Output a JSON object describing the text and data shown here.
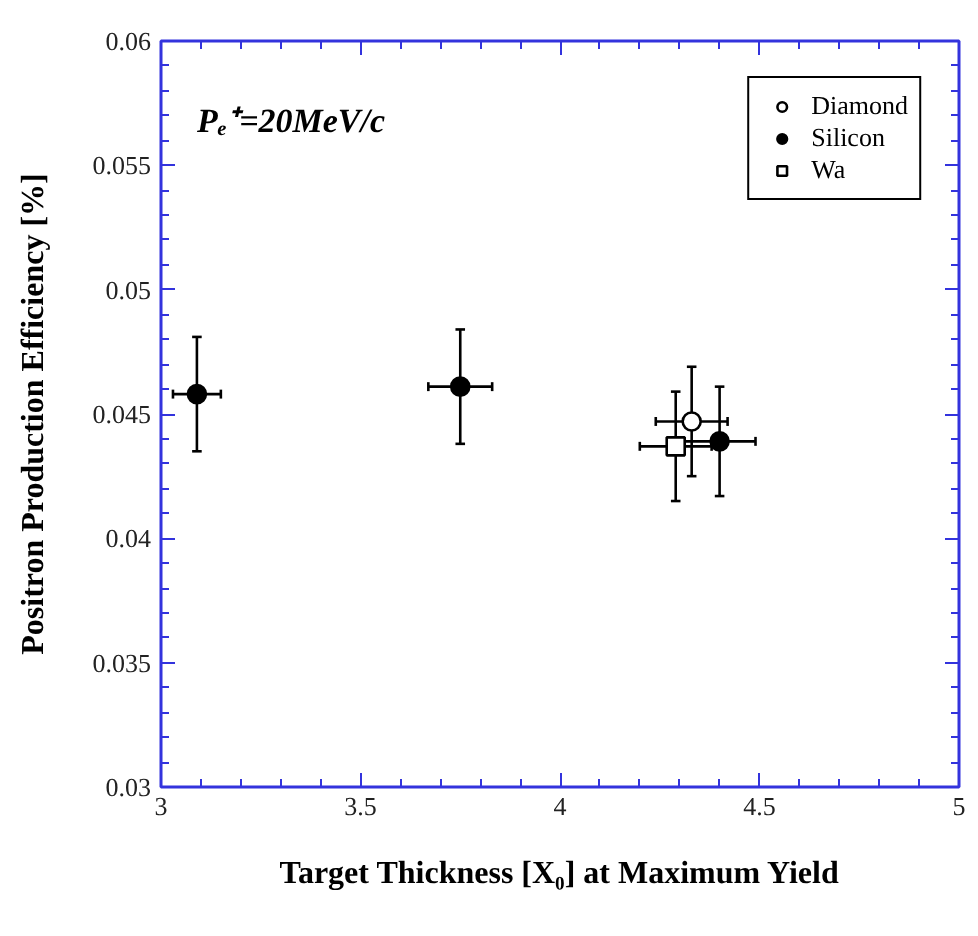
{
  "chart_data": {
    "type": "scatter",
    "xlabel": "Target Thickness [X₀] at Maximum Yield",
    "ylabel": "Positron Production Efficiency [%]",
    "annotations": [
      "Pₑ⁺=20MeV/c"
    ],
    "xlim": [
      3,
      5
    ],
    "xticks": [
      3,
      3.5,
      4,
      4.5,
      5
    ],
    "ylim": [
      0.03,
      0.06
    ],
    "yticks": [
      0.03,
      0.035,
      0.04,
      0.045,
      0.05,
      0.055,
      0.06
    ],
    "grid": false,
    "legend": "top right",
    "series": [
      {
        "name": "Diamond",
        "color": "#000000",
        "marker": "circle_open",
        "x": [
          4.33
        ],
        "values": [
          0.0447
        ],
        "errors": [
          0.0022
        ],
        "xerrors": [
          0.09
        ]
      },
      {
        "name": "Silicon",
        "color": "#000000",
        "marker": "circle",
        "x": [
          3.09,
          3.75,
          4.4
        ],
        "values": [
          0.0458,
          0.0461,
          0.0439
        ],
        "errors": [
          0.0023,
          0.0023,
          0.0022
        ],
        "xerrors": [
          0.06,
          0.08,
          0.09
        ]
      },
      {
        "name": "Wa",
        "color": "#000000",
        "marker": "square_open",
        "x": [
          4.29
        ],
        "values": [
          0.0437
        ],
        "errors": [
          0.0022
        ],
        "xerrors": [
          0.09
        ]
      }
    ]
  }
}
